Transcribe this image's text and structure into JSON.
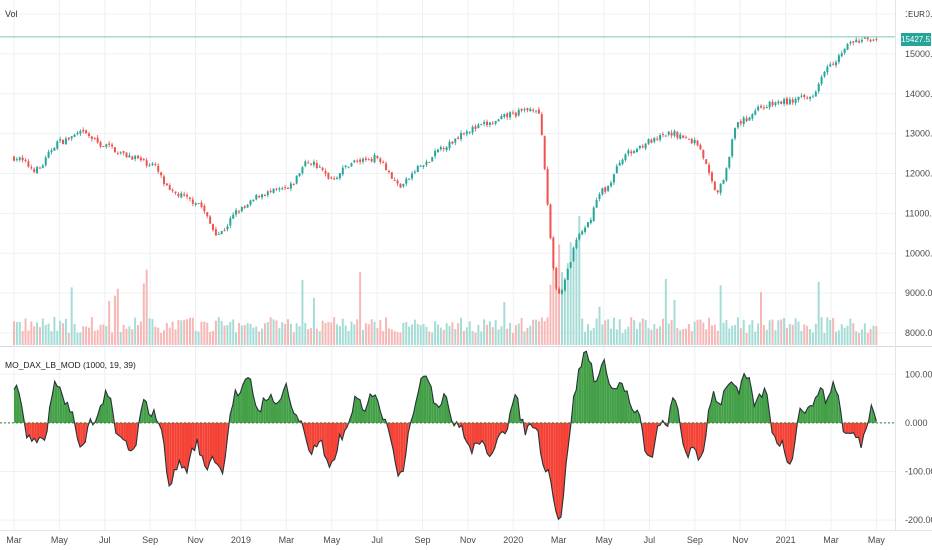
{
  "header": {
    "volume_label": "Vol",
    "currency": "EUR"
  },
  "price_tag": "15427.510",
  "indicator": {
    "label": "MO_DAX_LB_MOD (1000, 19, 39)"
  },
  "colors": {
    "up": "#26a69a",
    "down": "#ef5350",
    "vol_up": "#a6dcd6",
    "vol_down": "#f6b8b6",
    "pos_fill": "#43a047",
    "neg_fill": "#f44336",
    "grid": "#eef0f3",
    "axis_text": "#4a4a4a"
  },
  "chart_data": [
    {
      "type": "candlestick",
      "title": "",
      "currency": "EUR",
      "ylim": [
        7700,
        16100
      ],
      "y_ticks": [
        "8000.000",
        "9000.000",
        "10000.000",
        "11000.000",
        "12000.000",
        "13000.000",
        "14000.000",
        "15000.000",
        "16000.00"
      ],
      "last_price": 15427.51,
      "x_ticks": [
        "Mar",
        "May",
        "Jul",
        "Sep",
        "Nov",
        "2019",
        "Mar",
        "May",
        "Jul",
        "Sep",
        "Nov",
        "2020",
        "Mar",
        "May",
        "Jul",
        "Sep",
        "Nov",
        "2021",
        "Mar",
        "May"
      ],
      "series_anchors": [
        {
          "x": "2018-03",
          "close": 12400
        },
        {
          "x": "2018-04",
          "close": 12100
        },
        {
          "x": "2018-05",
          "close": 12800
        },
        {
          "x": "2018-06",
          "close": 13000
        },
        {
          "x": "2018-07",
          "close": 12700
        },
        {
          "x": "2018-08",
          "close": 12450
        },
        {
          "x": "2018-09",
          "close": 12250
        },
        {
          "x": "2018-10",
          "close": 11500
        },
        {
          "x": "2018-11",
          "close": 11300
        },
        {
          "x": "2018-12",
          "close": 10500
        },
        {
          "x": "2019-01",
          "close": 11100
        },
        {
          "x": "2019-02",
          "close": 11500
        },
        {
          "x": "2019-03",
          "close": 11600
        },
        {
          "x": "2019-04",
          "close": 12300
        },
        {
          "x": "2019-05",
          "close": 11900
        },
        {
          "x": "2019-06",
          "close": 12300
        },
        {
          "x": "2019-07",
          "close": 12400
        },
        {
          "x": "2019-08",
          "close": 11700
        },
        {
          "x": "2019-09",
          "close": 12200
        },
        {
          "x": "2019-10",
          "close": 12700
        },
        {
          "x": "2019-11",
          "close": 13100
        },
        {
          "x": "2019-12",
          "close": 13250
        },
        {
          "x": "2020-01",
          "close": 13500
        },
        {
          "x": "2020-02",
          "close": 13650
        },
        {
          "x": "2020-03",
          "close": 9000
        },
        {
          "x": "2020-04",
          "close": 10500
        },
        {
          "x": "2020-05",
          "close": 11600
        },
        {
          "x": "2020-06",
          "close": 12500
        },
        {
          "x": "2020-07",
          "close": 12800
        },
        {
          "x": "2020-08",
          "close": 13000
        },
        {
          "x": "2020-09",
          "close": 12800
        },
        {
          "x": "2020-10",
          "close": 11600
        },
        {
          "x": "2020-11",
          "close": 13300
        },
        {
          "x": "2020-12",
          "close": 13700
        },
        {
          "x": "2021-01",
          "close": 13800
        },
        {
          "x": "2021-02",
          "close": 13900
        },
        {
          "x": "2021-03",
          "close": 14800
        },
        {
          "x": "2021-04",
          "close": 15300
        },
        {
          "x": "2021-05",
          "close": 15400
        }
      ]
    },
    {
      "type": "area",
      "title": "MO_DAX_LB_MOD (1000, 19, 39)",
      "ylim": [
        -210,
        150
      ],
      "y_ticks": [
        "100.000",
        "0.000",
        "-100.000",
        "-200.000"
      ],
      "baseline": 0,
      "series_anchors": [
        {
          "x": "2018-03",
          "value": 60
        },
        {
          "x": "2018-04",
          "value": -50
        },
        {
          "x": "2018-05",
          "value": 70
        },
        {
          "x": "2018-06",
          "value": -40
        },
        {
          "x": "2018-07",
          "value": 50
        },
        {
          "x": "2018-08",
          "value": -60
        },
        {
          "x": "2018-09",
          "value": 40
        },
        {
          "x": "2018-10",
          "value": -110
        },
        {
          "x": "2018-11",
          "value": -60
        },
        {
          "x": "2018-12",
          "value": -90
        },
        {
          "x": "2019-01",
          "value": 80
        },
        {
          "x": "2019-02",
          "value": 40
        },
        {
          "x": "2019-03",
          "value": 60
        },
        {
          "x": "2019-04",
          "value": -40
        },
        {
          "x": "2019-05",
          "value": -80
        },
        {
          "x": "2019-06",
          "value": 30
        },
        {
          "x": "2019-07",
          "value": 50
        },
        {
          "x": "2019-08",
          "value": -90
        },
        {
          "x": "2019-09",
          "value": 90
        },
        {
          "x": "2019-10",
          "value": 40
        },
        {
          "x": "2019-11",
          "value": -40
        },
        {
          "x": "2019-12",
          "value": -60
        },
        {
          "x": "2020-01",
          "value": 30
        },
        {
          "x": "2020-02",
          "value": -20
        },
        {
          "x": "2020-03",
          "value": -180
        },
        {
          "x": "2020-04",
          "value": 130
        },
        {
          "x": "2020-05",
          "value": 100
        },
        {
          "x": "2020-06",
          "value": 60
        },
        {
          "x": "2020-07",
          "value": -60
        },
        {
          "x": "2020-08",
          "value": 30
        },
        {
          "x": "2020-09",
          "value": -80
        },
        {
          "x": "2020-10",
          "value": 60
        },
        {
          "x": "2020-11",
          "value": 80
        },
        {
          "x": "2020-12",
          "value": 50
        },
        {
          "x": "2021-01",
          "value": -70
        },
        {
          "x": "2021-02",
          "value": 40
        },
        {
          "x": "2021-03",
          "value": 70
        },
        {
          "x": "2021-04",
          "value": -40
        },
        {
          "x": "2021-05",
          "value": 20
        }
      ]
    }
  ]
}
